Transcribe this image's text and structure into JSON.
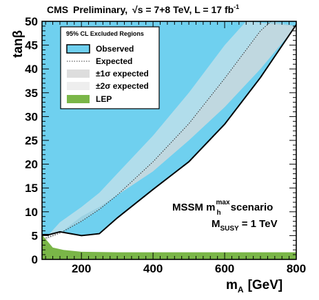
{
  "chart_data": {
    "type": "area",
    "title": "CMS Preliminary, √s = 7+8 TeV, L = 17 fb⁻¹",
    "title_parts": {
      "exp": "CMS",
      "status": "Preliminary,",
      "energy": "√s = 7+8 TeV, L = 17 fb",
      "lumi_exp": "-1"
    },
    "xlabel": "m_A [GeV]",
    "xlabel_main": "m",
    "xlabel_sub": "A",
    "xlabel_unit": "[GeV]",
    "ylabel": "tanβ",
    "xlim": [
      90,
      800
    ],
    "ylim": [
      0,
      50
    ],
    "x_ticks": [
      200,
      400,
      600,
      800
    ],
    "y_ticks": [
      0,
      5,
      10,
      15,
      20,
      25,
      30,
      35,
      40,
      45,
      50
    ],
    "grid": false,
    "legend_title": "95% CL Excluded Regions",
    "legend_position": "top-left",
    "legend": [
      {
        "key": "observed",
        "label": "Observed",
        "color": "#6fd0ef"
      },
      {
        "key": "expected",
        "label": "Expected",
        "color": "#333333"
      },
      {
        "key": "one_sigma",
        "label": "±1σ expected",
        "color": "#dddddd"
      },
      {
        "key": "two_sigma",
        "label": "±2σ expected",
        "color": "#eeeeee"
      },
      {
        "key": "lep",
        "label": "LEP",
        "color": "#7ab648"
      }
    ],
    "annotation": {
      "line1_prefix": "MSSM m",
      "line1_sup": "max",
      "line1_sub": "h",
      "line1_suffix": "scenario",
      "line2_prefix": "M",
      "line2_sub": "SUSY",
      "line2_suffix": "= 1 TeV"
    },
    "series": [
      {
        "key": "observed",
        "name": "Observed",
        "x": [
          90,
          110,
          140,
          200,
          250,
          300,
          400,
          500,
          600,
          700,
          800
        ],
        "y": [
          5.2,
          5.2,
          5.8,
          5.0,
          5.4,
          8.7,
          14.7,
          20.5,
          28.4,
          38.2,
          49.3
        ]
      },
      {
        "key": "expected",
        "name": "Expected",
        "x": [
          100,
          140,
          200,
          250,
          300,
          400,
          500,
          600,
          700,
          730
        ],
        "y": [
          4.5,
          5.5,
          8.0,
          10.5,
          13.5,
          20.5,
          28.5,
          38.0,
          48.0,
          50.0
        ]
      },
      {
        "key": "band_upper",
        "x": [
          100,
          140,
          200,
          250,
          300,
          400,
          500,
          600,
          700,
          800
        ],
        "y": [
          4.0,
          5.5,
          9.0,
          11.0,
          13.5,
          18.5,
          25.0,
          32.0,
          40.0,
          49.0
        ]
      },
      {
        "key": "band_lower",
        "x": [
          100,
          140,
          200,
          250,
          300,
          400,
          500,
          600,
          660
        ],
        "y": [
          4.5,
          7.8,
          11.0,
          14.0,
          18.0,
          26.0,
          35.0,
          45.0,
          50.0
        ]
      },
      {
        "key": "lep",
        "name": "LEP",
        "x": [
          90,
          120,
          150,
          200,
          300,
          400,
          500,
          600,
          700,
          800
        ],
        "y": [
          5.2,
          2.5,
          2.0,
          1.6,
          1.5,
          1.5,
          1.5,
          1.5,
          1.5,
          1.5
        ]
      }
    ],
    "colors": {
      "observed": "#6fd0ef",
      "band_outer": "#e8e8e8",
      "band_inner": "#d2d2d2",
      "lep": "#7ab648"
    }
  }
}
